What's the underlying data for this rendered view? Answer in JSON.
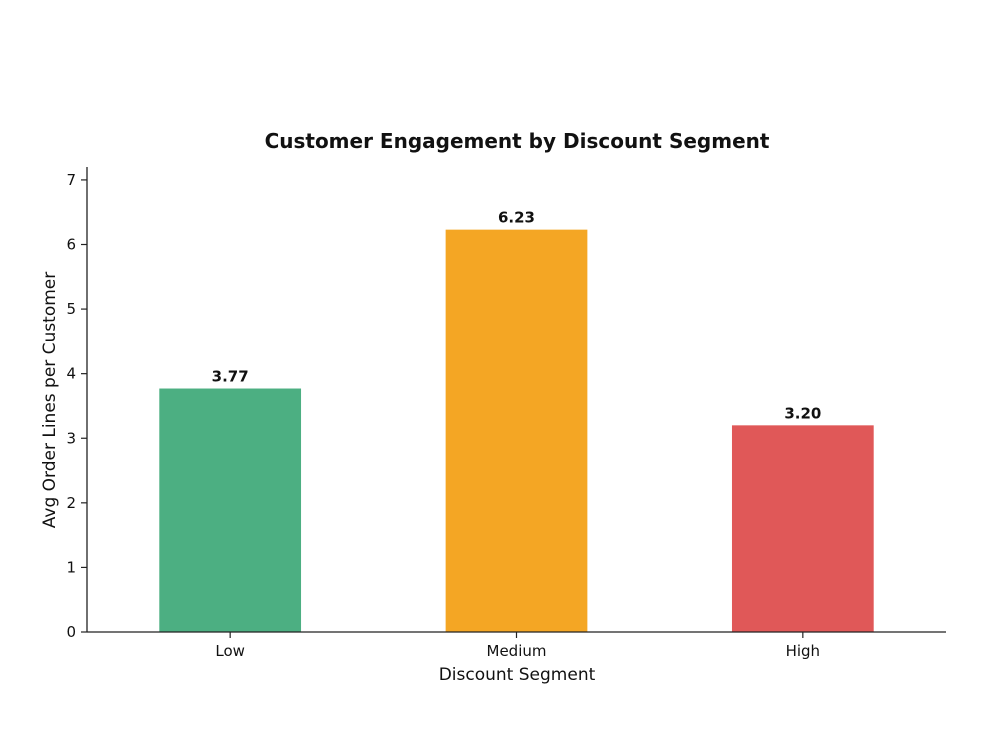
{
  "chart_data": {
    "type": "bar",
    "title": "Customer Engagement by Discount Segment",
    "xlabel": "Discount Segment",
    "ylabel": "Avg Order Lines per Customer",
    "categories": [
      "Low",
      "Medium",
      "High"
    ],
    "values": [
      3.77,
      6.23,
      3.2
    ],
    "value_labels": [
      "3.77",
      "6.23",
      "3.20"
    ],
    "colors": [
      "#4caf82",
      "#f4a624",
      "#e05858"
    ],
    "ylim": [
      0,
      7.2
    ],
    "yticks": [
      0,
      1,
      2,
      3,
      4,
      5,
      6,
      7
    ],
    "grid": false,
    "legend": "none"
  }
}
